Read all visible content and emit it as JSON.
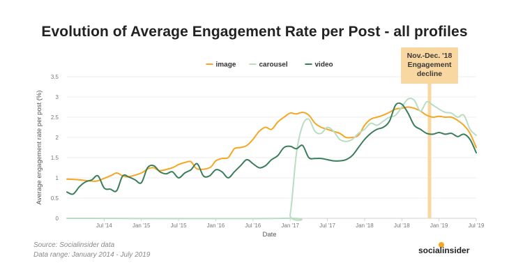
{
  "chart_data": {
    "type": "line",
    "title": "Evolution of Average Engagement Rate per Post - all profiles",
    "xlabel": "Date",
    "ylabel": "Average engagement rate per post (%)",
    "ylim": [
      0,
      3.5
    ],
    "yticks": [
      "0",
      "0.5",
      "1",
      "1.5",
      "2",
      "2.5",
      "3",
      "3.5"
    ],
    "xlim": [
      "2014-01",
      "2019-07"
    ],
    "xticks": [
      {
        "label": "Jul '14",
        "date": "2014-07"
      },
      {
        "label": "Jan '15",
        "date": "2015-01"
      },
      {
        "label": "Jul '15",
        "date": "2015-07"
      },
      {
        "label": "Jan '16",
        "date": "2016-01"
      },
      {
        "label": "Jul '16",
        "date": "2016-07"
      },
      {
        "label": "Jan '17",
        "date": "2017-01"
      },
      {
        "label": "Jul '17",
        "date": "2017-07"
      },
      {
        "label": "Jan '18",
        "date": "2018-01"
      },
      {
        "label": "Jul '18",
        "date": "2018-07"
      },
      {
        "label": "Jan '19",
        "date": "2019-01"
      },
      {
        "label": "Jul '19",
        "date": "2019-07"
      }
    ],
    "grid": true,
    "legend_position": "top-center",
    "series": [
      {
        "name": "image",
        "color": "#f5a623",
        "points": [
          [
            "2014-01",
            0.97
          ],
          [
            "2014-03",
            0.95
          ],
          [
            "2014-05",
            0.92
          ],
          [
            "2014-06",
            0.93
          ],
          [
            "2014-08",
            1.05
          ],
          [
            "2014-09",
            1.12
          ],
          [
            "2014-10",
            1.05
          ],
          [
            "2014-11",
            1.03
          ],
          [
            "2015-01",
            1.12
          ],
          [
            "2015-02",
            1.22
          ],
          [
            "2015-03",
            1.25
          ],
          [
            "2015-04",
            1.18
          ],
          [
            "2015-06",
            1.25
          ],
          [
            "2015-07",
            1.33
          ],
          [
            "2015-08",
            1.38
          ],
          [
            "2015-09",
            1.4
          ],
          [
            "2015-10",
            1.22
          ],
          [
            "2015-12",
            1.25
          ],
          [
            "2016-01",
            1.42
          ],
          [
            "2016-02",
            1.48
          ],
          [
            "2016-03",
            1.5
          ],
          [
            "2016-04",
            1.72
          ],
          [
            "2016-05",
            1.75
          ],
          [
            "2016-06",
            1.8
          ],
          [
            "2016-07",
            1.95
          ],
          [
            "2016-08",
            2.15
          ],
          [
            "2016-09",
            2.25
          ],
          [
            "2016-10",
            2.2
          ],
          [
            "2016-11",
            2.38
          ],
          [
            "2016-12",
            2.5
          ],
          [
            "2017-01",
            2.6
          ],
          [
            "2017-02",
            2.58
          ],
          [
            "2017-03",
            2.62
          ],
          [
            "2017-04",
            2.55
          ],
          [
            "2017-05",
            2.35
          ],
          [
            "2017-06",
            2.25
          ],
          [
            "2017-07",
            2.2
          ],
          [
            "2017-08",
            2.15
          ],
          [
            "2017-09",
            2.1
          ],
          [
            "2017-10",
            2.0
          ],
          [
            "2017-11",
            2.0
          ],
          [
            "2017-12",
            2.05
          ],
          [
            "2018-01",
            2.3
          ],
          [
            "2018-02",
            2.45
          ],
          [
            "2018-03",
            2.5
          ],
          [
            "2018-04",
            2.55
          ],
          [
            "2018-05",
            2.62
          ],
          [
            "2018-06",
            2.7
          ],
          [
            "2018-07",
            2.72
          ],
          [
            "2018-08",
            2.75
          ],
          [
            "2018-09",
            2.72
          ],
          [
            "2018-10",
            2.65
          ],
          [
            "2018-11",
            2.55
          ],
          [
            "2018-12",
            2.5
          ],
          [
            "2019-01",
            2.52
          ],
          [
            "2019-02",
            2.5
          ],
          [
            "2019-03",
            2.5
          ],
          [
            "2019-04",
            2.42
          ],
          [
            "2019-05",
            2.3
          ],
          [
            "2019-06",
            2.1
          ],
          [
            "2019-07",
            1.75
          ]
        ]
      },
      {
        "name": "carousel",
        "color": "#b9dcc4",
        "points": [
          [
            "2014-01",
            0.0
          ],
          [
            "2016-12",
            0.0
          ],
          [
            "2017-01",
            0.1
          ],
          [
            "2017-02",
            1.6
          ],
          [
            "2017-03",
            2.3
          ],
          [
            "2017-04",
            2.45
          ],
          [
            "2017-05",
            2.15
          ],
          [
            "2017-06",
            2.1
          ],
          [
            "2017-07",
            2.25
          ],
          [
            "2017-08",
            2.15
          ],
          [
            "2017-09",
            1.95
          ],
          [
            "2017-10",
            1.9
          ],
          [
            "2017-11",
            1.95
          ],
          [
            "2017-12",
            2.1
          ],
          [
            "2018-01",
            2.2
          ],
          [
            "2018-02",
            2.35
          ],
          [
            "2018-03",
            2.3
          ],
          [
            "2018-04",
            2.4
          ],
          [
            "2018-05",
            2.5
          ],
          [
            "2018-06",
            2.55
          ],
          [
            "2018-07",
            2.75
          ],
          [
            "2018-08",
            2.95
          ],
          [
            "2018-09",
            2.92
          ],
          [
            "2018-10",
            2.65
          ],
          [
            "2018-11",
            2.88
          ],
          [
            "2018-12",
            2.8
          ],
          [
            "2019-01",
            2.7
          ],
          [
            "2019-02",
            2.62
          ],
          [
            "2019-03",
            2.6
          ],
          [
            "2019-04",
            2.5
          ],
          [
            "2019-05",
            2.55
          ],
          [
            "2019-06",
            2.2
          ],
          [
            "2019-07",
            2.05
          ]
        ]
      },
      {
        "name": "video",
        "color": "#3a7d5a",
        "points": [
          [
            "2014-01",
            0.65
          ],
          [
            "2014-02",
            0.6
          ],
          [
            "2014-03",
            0.78
          ],
          [
            "2014-04",
            0.9
          ],
          [
            "2014-05",
            0.95
          ],
          [
            "2014-06",
            1.05
          ],
          [
            "2014-07",
            0.75
          ],
          [
            "2014-08",
            0.72
          ],
          [
            "2014-09",
            0.68
          ],
          [
            "2014-10",
            1.05
          ],
          [
            "2014-11",
            1.02
          ],
          [
            "2014-12",
            0.95
          ],
          [
            "2015-01",
            0.88
          ],
          [
            "2015-02",
            1.25
          ],
          [
            "2015-03",
            1.3
          ],
          [
            "2015-04",
            1.15
          ],
          [
            "2015-05",
            1.1
          ],
          [
            "2015-06",
            1.15
          ],
          [
            "2015-07",
            1.0
          ],
          [
            "2015-08",
            1.12
          ],
          [
            "2015-09",
            1.2
          ],
          [
            "2015-10",
            1.35
          ],
          [
            "2015-11",
            1.05
          ],
          [
            "2015-12",
            1.05
          ],
          [
            "2016-01",
            1.2
          ],
          [
            "2016-02",
            1.15
          ],
          [
            "2016-03",
            1.0
          ],
          [
            "2016-04",
            1.15
          ],
          [
            "2016-05",
            1.3
          ],
          [
            "2016-06",
            1.45
          ],
          [
            "2016-07",
            1.35
          ],
          [
            "2016-08",
            1.25
          ],
          [
            "2016-09",
            1.3
          ],
          [
            "2016-10",
            1.45
          ],
          [
            "2016-11",
            1.55
          ],
          [
            "2016-12",
            1.75
          ],
          [
            "2017-01",
            1.78
          ],
          [
            "2017-02",
            1.72
          ],
          [
            "2017-03",
            1.8
          ],
          [
            "2017-04",
            1.5
          ],
          [
            "2017-05",
            1.48
          ],
          [
            "2017-06",
            1.48
          ],
          [
            "2017-07",
            1.45
          ],
          [
            "2017-08",
            1.42
          ],
          [
            "2017-09",
            1.42
          ],
          [
            "2017-10",
            1.45
          ],
          [
            "2017-11",
            1.55
          ],
          [
            "2017-12",
            1.75
          ],
          [
            "2018-01",
            1.95
          ],
          [
            "2018-02",
            2.1
          ],
          [
            "2018-03",
            2.2
          ],
          [
            "2018-04",
            2.25
          ],
          [
            "2018-05",
            2.4
          ],
          [
            "2018-06",
            2.8
          ],
          [
            "2018-07",
            2.82
          ],
          [
            "2018-08",
            2.6
          ],
          [
            "2018-09",
            2.3
          ],
          [
            "2018-10",
            2.2
          ],
          [
            "2018-11",
            2.1
          ],
          [
            "2018-12",
            2.08
          ],
          [
            "2019-01",
            2.12
          ],
          [
            "2019-02",
            2.08
          ],
          [
            "2019-03",
            2.1
          ],
          [
            "2019-04",
            2.02
          ],
          [
            "2019-05",
            2.08
          ],
          [
            "2019-06",
            1.95
          ],
          [
            "2019-07",
            1.62
          ]
        ]
      }
    ],
    "annotation": {
      "lines": [
        "Nov.-Dec. '18",
        "Engagement",
        "decline"
      ],
      "date": "2018-11-15",
      "color": "#f8d7a0"
    }
  },
  "footer": {
    "source": "Source: Socialinsider data",
    "range": "Data range: January 2014 - July 2019"
  },
  "brand": {
    "name": "socialinsider"
  }
}
